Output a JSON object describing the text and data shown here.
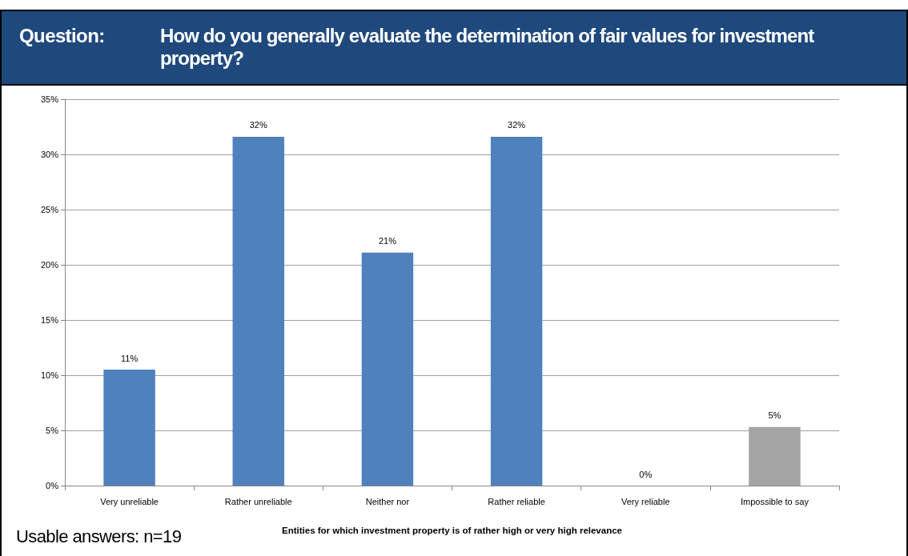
{
  "chart_data": {
    "type": "bar",
    "title": "Question:",
    "subtitle": "How do you generally evaluate the determination of fair values for investment property?",
    "categories": [
      "Very unreliable",
      "Rather unreliable",
      "Neither nor",
      "Rather reliable",
      "Very reliable",
      "Impossible to say"
    ],
    "values": [
      10.5,
      31.6,
      21.1,
      31.6,
      0,
      5.3
    ],
    "value_labels": [
      "11%",
      "32%",
      "21%",
      "32%",
      "0%",
      "5%"
    ],
    "colors": [
      "#4f81bd",
      "#4f81bd",
      "#4f81bd",
      "#4f81bd",
      "#4f81bd",
      "#a5a5a5"
    ],
    "xlabel": "Entities for which investment property is of rather high or very high relevance",
    "annotations": [
      "Usable answers: n=19"
    ],
    "ylim": [
      0,
      35
    ],
    "yticks": [
      {
        "value": 0,
        "label": "0%"
      },
      {
        "value": 5,
        "label": "5%"
      },
      {
        "value": 10,
        "label": "10%"
      },
      {
        "value": 15,
        "label": "15%"
      },
      {
        "value": 20,
        "label": "20%"
      },
      {
        "value": 25,
        "label": "25%"
      },
      {
        "value": 30,
        "label": "30%"
      },
      {
        "value": 35,
        "label": "35%"
      }
    ],
    "grid": "y"
  }
}
